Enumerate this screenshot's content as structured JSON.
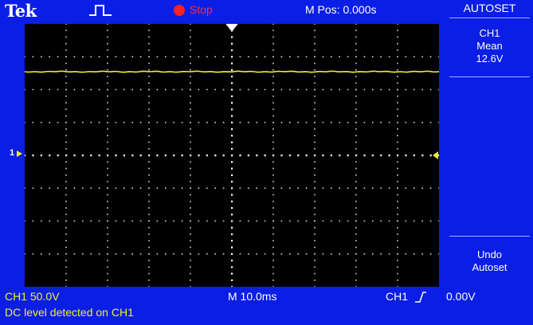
{
  "brand": "Tek",
  "status": {
    "acquisition_icon": "pulse-waveform-icon",
    "run_state": "Stop",
    "run_state_color": "#ff2020",
    "horizontal_position": "M Pos: 0.000s"
  },
  "menu": {
    "title": "AUTOSET",
    "measurement": {
      "channel": "CH1",
      "type": "Mean",
      "value": "12.6V"
    },
    "undo": {
      "line1": "Undo",
      "line2": "Autoset"
    }
  },
  "channel_marker": "1",
  "readouts": {
    "ch1_scale": "CH1  50.0V",
    "timebase": "M 10.0ms",
    "trigger_source": "CH1",
    "trigger_slope_icon": "rising-edge-icon",
    "trigger_level": "0.00V"
  },
  "message": "DC level detected on CH1",
  "colors": {
    "background": "#0a1ee6",
    "trace": "#f0f028",
    "screen": "#000000"
  }
}
